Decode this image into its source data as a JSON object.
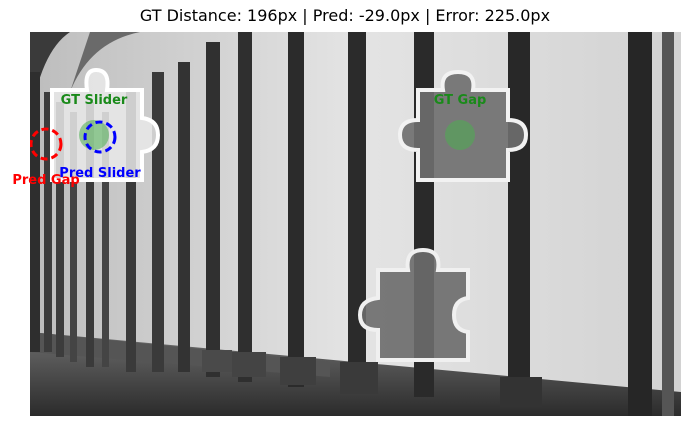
{
  "figure": {
    "title": "GT Distance: 196px | Pred: -29.0px | Error: 225.0px"
  },
  "colors": {
    "gt": "#1a8a1a",
    "pred_slider": "#0000ff",
    "pred_gap": "#ff0000"
  },
  "labels": {
    "gt_slider": "GT Slider",
    "gt_gap": "GT Gap",
    "pred_slider": "Pred Slider",
    "pred_gap": "Pred Gap"
  }
}
